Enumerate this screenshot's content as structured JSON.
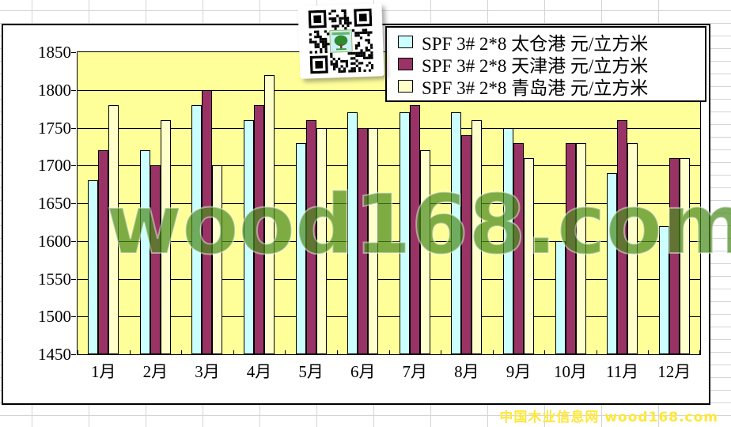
{
  "sheet": {
    "background": "#ffffff",
    "gridline_color": "#d4d4d4"
  },
  "chart": {
    "background": "#ffffff",
    "border_color": "#000000",
    "plot_background": "#ffff99",
    "gridline_color": "#000000"
  },
  "chart_data": {
    "type": "bar",
    "title": "",
    "xlabel": "",
    "ylabel": "",
    "categories": [
      "1月",
      "2月",
      "3月",
      "4月",
      "5月",
      "6月",
      "7月",
      "8月",
      "9月",
      "10月",
      "11月",
      "12月"
    ],
    "series": [
      {
        "name": "SPF 3# 2*8 太仓港 元/立方米",
        "color": "#ccffff",
        "values": [
          1680,
          1720,
          1780,
          1760,
          1730,
          1770,
          1770,
          1770,
          1750,
          1600,
          1690,
          1620
        ]
      },
      {
        "name": "SPF 3# 2*8 天津港 元/立方米",
        "color": "#993366",
        "values": [
          1720,
          1700,
          1800,
          1780,
          1760,
          1750,
          1780,
          1740,
          1730,
          1730,
          1760,
          1710
        ]
      },
      {
        "name": "SPF 3# 2*8 青岛港 元/立方米",
        "color": "#ffffcc",
        "values": [
          1780,
          1760,
          1700,
          1820,
          1750,
          1750,
          1720,
          1760,
          1710,
          1730,
          1730,
          1710
        ]
      }
    ],
    "ylim": [
      1450,
      1850
    ],
    "ytick_step": 50,
    "yticks": [
      1450,
      1500,
      1550,
      1600,
      1650,
      1700,
      1750,
      1800,
      1850
    ],
    "grid": true,
    "legend_position": "top-right"
  },
  "watermark": {
    "text": "wood168.com",
    "color": "#4c8c21"
  },
  "footer": {
    "text": "中国木业信息网 wood168.com",
    "color": "#ffe639"
  },
  "icons": {
    "qr_code": "qr-code",
    "logo": "tree-icon"
  }
}
